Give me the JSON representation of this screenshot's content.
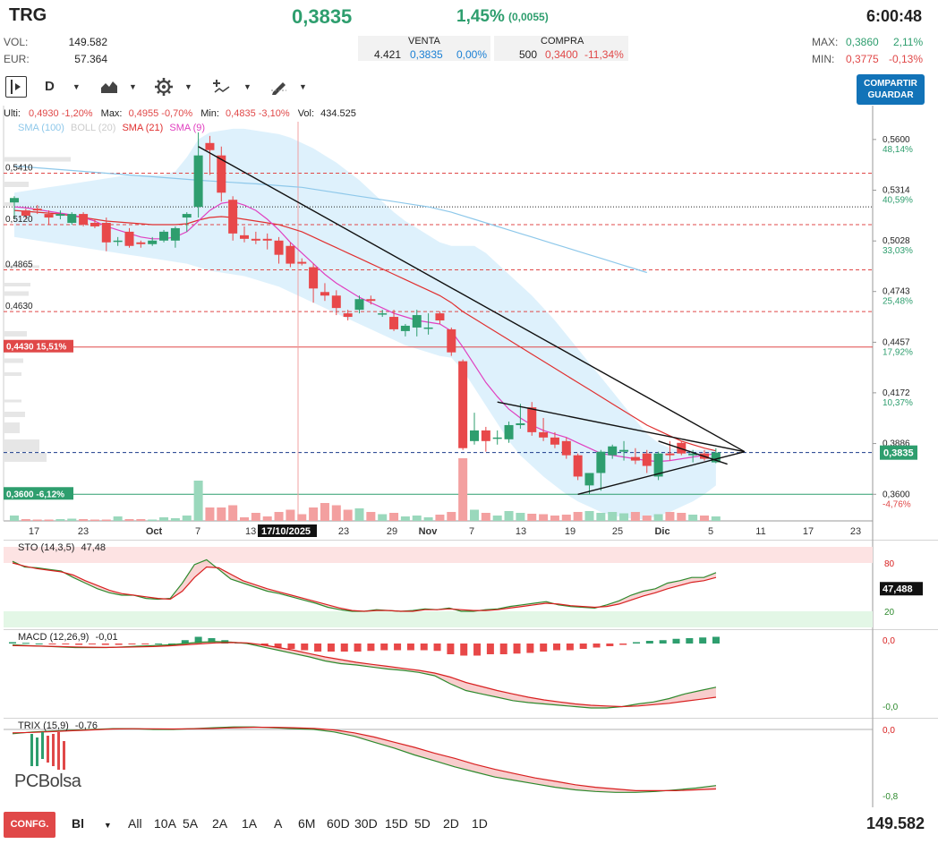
{
  "header": {
    "ticker": "TRG",
    "price": "0,3835",
    "change_pct": "1,45%",
    "change_abs": "(0,0055)",
    "time": "6:00:48"
  },
  "stats_left": {
    "vol_label": "VOL:",
    "vol_value": "149.582",
    "eur_label": "EUR:",
    "eur_value": "57.364"
  },
  "order_book": {
    "sell_label": "VENTA",
    "sell_qty": "4.421",
    "sell_price": "0,3835",
    "sell_pct": "0,00%",
    "buy_label": "COMPRA",
    "buy_qty": "500",
    "buy_price": "0,3400",
    "buy_pct": "-11,34%"
  },
  "stats_right": {
    "max_label": "MAX:",
    "max_value": "0,3860",
    "max_pct": "2,11%",
    "min_label": "MIN:",
    "min_value": "0,3775",
    "min_pct": "-0,13%"
  },
  "toolbar": {
    "period": "D",
    "share_line1": "COMPARTIR",
    "share_line2": "GUARDAR"
  },
  "ohlc": {
    "last_label": "Ulti:",
    "last_value": "0,4930",
    "last_pct": "-1,20%",
    "max_label": "Max:",
    "max_value": "0,4955",
    "max_pct": "-0,70%",
    "min_label": "Min:",
    "min_value": "0,4835",
    "min_pct": "-3,10%",
    "vol_label": "Vol:",
    "vol_value": "434.525"
  },
  "legend": {
    "sma100": "SMA (100)",
    "boll": "BOLL (20)",
    "sma21": "SMA (21)",
    "sma9": "SMA (9)"
  },
  "colors": {
    "up": "#2e9e6e",
    "down": "#e8484a",
    "sma100": "#8ec8ea",
    "sma21": "#e03030",
    "sma9": "#e040c0",
    "boll": "#d8eefc",
    "accent": "#1273b8"
  },
  "price_axis": {
    "levels": [
      {
        "price": "0,5600",
        "pct": "48,14%"
      },
      {
        "price": "0,5314",
        "pct": "40,59%"
      },
      {
        "price": "0,5028",
        "pct": "33,03%"
      },
      {
        "price": "0,4743",
        "pct": "25,48%"
      },
      {
        "price": "0,4457",
        "pct": "17,92%"
      },
      {
        "price": "0,4172",
        "pct": "10,37%"
      },
      {
        "price": "0,3886",
        "pct": "2,81%"
      },
      {
        "price": "0,3600",
        "pct": "-4,76%"
      }
    ],
    "current": "0,3835"
  },
  "left_levels": [
    {
      "value": "0,5410"
    },
    {
      "value": "0,5120"
    },
    {
      "value": "0,4865"
    },
    {
      "value": "0,4630"
    }
  ],
  "level_pills": {
    "upper": "0,4430 15,51%",
    "lower": "0,3600 -6,12%"
  },
  "date_axis": {
    "labels": [
      "17",
      "23",
      "Oct",
      "7",
      "13",
      "23",
      "29",
      "Nov",
      "7",
      "13",
      "19",
      "25",
      "Dic",
      "5",
      "11",
      "17",
      "23"
    ],
    "crosshair": "17/10/2025"
  },
  "sto": {
    "label": "STO (14,3,5)",
    "value": "47,48",
    "tag": "47,488",
    "upper": "80",
    "lower": "20"
  },
  "macd": {
    "label": "MACD (12,26,9)",
    "value": "-0,01",
    "top": "0,0",
    "bottom": "-0,0"
  },
  "trix": {
    "label": "TRIX (15,9)",
    "value": "-0,76",
    "top": "0,0",
    "bottom": "-0,8"
  },
  "logo": "PCBolsa",
  "bottom_bar": {
    "config": "CONFG.",
    "chart_type": "Bl",
    "ranges": [
      "All",
      "10A",
      "5A",
      "2A",
      "1A",
      "A",
      "6M",
      "60D",
      "30D",
      "15D",
      "5D",
      "2D",
      "1D"
    ],
    "volume": "149.582"
  },
  "chart_data": {
    "type": "candlestick",
    "ohlc": [
      {
        "o": 0.5245,
        "h": 0.528,
        "l": 0.515,
        "c": 0.527
      },
      {
        "o": 0.52,
        "h": 0.521,
        "l": 0.5155,
        "c": 0.517
      },
      {
        "o": 0.521,
        "h": 0.523,
        "l": 0.518,
        "c": 0.52
      },
      {
        "o": 0.518,
        "h": 0.52,
        "l": 0.512,
        "c": 0.516
      },
      {
        "o": 0.517,
        "h": 0.52,
        "l": 0.515,
        "c": 0.518
      },
      {
        "o": 0.513,
        "h": 0.519,
        "l": 0.512,
        "c": 0.518
      },
      {
        "o": 0.518,
        "h": 0.519,
        "l": 0.511,
        "c": 0.512
      },
      {
        "o": 0.513,
        "h": 0.515,
        "l": 0.51,
        "c": 0.511
      },
      {
        "o": 0.513,
        "h": 0.516,
        "l": 0.497,
        "c": 0.502
      },
      {
        "o": 0.503,
        "h": 0.505,
        "l": 0.5,
        "c": 0.503
      },
      {
        "o": 0.508,
        "h": 0.51,
        "l": 0.499,
        "c": 0.5
      },
      {
        "o": 0.502,
        "h": 0.503,
        "l": 0.499,
        "c": 0.501
      },
      {
        "o": 0.501,
        "h": 0.505,
        "l": 0.5,
        "c": 0.503
      },
      {
        "o": 0.503,
        "h": 0.509,
        "l": 0.502,
        "c": 0.508
      },
      {
        "o": 0.503,
        "h": 0.511,
        "l": 0.499,
        "c": 0.51
      },
      {
        "o": 0.516,
        "h": 0.519,
        "l": 0.508,
        "c": 0.518
      },
      {
        "o": 0.522,
        "h": 0.564,
        "l": 0.516,
        "c": 0.551
      },
      {
        "o": 0.558,
        "h": 0.562,
        "l": 0.54,
        "c": 0.554
      },
      {
        "o": 0.551,
        "h": 0.556,
        "l": 0.525,
        "c": 0.53
      },
      {
        "o": 0.526,
        "h": 0.528,
        "l": 0.503,
        "c": 0.507
      },
      {
        "o": 0.506,
        "h": 0.511,
        "l": 0.502,
        "c": 0.504
      },
      {
        "o": 0.504,
        "h": 0.508,
        "l": 0.501,
        "c": 0.503
      },
      {
        "o": 0.504,
        "h": 0.507,
        "l": 0.498,
        "c": 0.503
      },
      {
        "o": 0.503,
        "h": 0.505,
        "l": 0.49,
        "c": 0.495
      },
      {
        "o": 0.5,
        "h": 0.502,
        "l": 0.488,
        "c": 0.49
      },
      {
        "o": 0.491,
        "h": 0.493,
        "l": 0.489,
        "c": 0.49
      },
      {
        "o": 0.488,
        "h": 0.49,
        "l": 0.468,
        "c": 0.476
      },
      {
        "o": 0.474,
        "h": 0.479,
        "l": 0.469,
        "c": 0.472
      },
      {
        "o": 0.472,
        "h": 0.475,
        "l": 0.461,
        "c": 0.465
      },
      {
        "o": 0.462,
        "h": 0.464,
        "l": 0.458,
        "c": 0.46
      },
      {
        "o": 0.464,
        "h": 0.472,
        "l": 0.462,
        "c": 0.47
      },
      {
        "o": 0.47,
        "h": 0.472,
        "l": 0.467,
        "c": 0.469
      },
      {
        "o": 0.462,
        "h": 0.464,
        "l": 0.46,
        "c": 0.462
      },
      {
        "o": 0.46,
        "h": 0.464,
        "l": 0.452,
        "c": 0.453
      },
      {
        "o": 0.452,
        "h": 0.456,
        "l": 0.449,
        "c": 0.455
      },
      {
        "o": 0.454,
        "h": 0.464,
        "l": 0.449,
        "c": 0.461
      },
      {
        "o": 0.454,
        "h": 0.462,
        "l": 0.45,
        "c": 0.454
      },
      {
        "o": 0.462,
        "h": 0.463,
        "l": 0.456,
        "c": 0.458
      },
      {
        "o": 0.453,
        "h": 0.454,
        "l": 0.438,
        "c": 0.44
      },
      {
        "o": 0.435,
        "h": 0.436,
        "l": 0.385,
        "c": 0.386
      },
      {
        "o": 0.39,
        "h": 0.406,
        "l": 0.388,
        "c": 0.396
      },
      {
        "o": 0.396,
        "h": 0.398,
        "l": 0.384,
        "c": 0.39
      },
      {
        "o": 0.392,
        "h": 0.396,
        "l": 0.388,
        "c": 0.392
      },
      {
        "o": 0.391,
        "h": 0.401,
        "l": 0.389,
        "c": 0.399
      },
      {
        "o": 0.399,
        "h": 0.411,
        "l": 0.397,
        "c": 0.4
      },
      {
        "o": 0.409,
        "h": 0.412,
        "l": 0.393,
        "c": 0.395
      },
      {
        "o": 0.395,
        "h": 0.403,
        "l": 0.39,
        "c": 0.392
      },
      {
        "o": 0.392,
        "h": 0.395,
        "l": 0.386,
        "c": 0.388
      },
      {
        "o": 0.39,
        "h": 0.392,
        "l": 0.38,
        "c": 0.382
      },
      {
        "o": 0.382,
        "h": 0.383,
        "l": 0.368,
        "c": 0.37
      },
      {
        "o": 0.365,
        "h": 0.372,
        "l": 0.36,
        "c": 0.372
      },
      {
        "o": 0.372,
        "h": 0.385,
        "l": 0.362,
        "c": 0.384
      },
      {
        "o": 0.382,
        "h": 0.388,
        "l": 0.38,
        "c": 0.387
      },
      {
        "o": 0.384,
        "h": 0.39,
        "l": 0.379,
        "c": 0.385
      },
      {
        "o": 0.381,
        "h": 0.386,
        "l": 0.377,
        "c": 0.379
      },
      {
        "o": 0.383,
        "h": 0.385,
        "l": 0.372,
        "c": 0.376
      },
      {
        "o": 0.37,
        "h": 0.384,
        "l": 0.368,
        "c": 0.383
      },
      {
        "o": 0.383,
        "h": 0.39,
        "l": 0.379,
        "c": 0.382
      },
      {
        "o": 0.389,
        "h": 0.39,
        "l": 0.382,
        "c": 0.383
      },
      {
        "o": 0.382,
        "h": 0.385,
        "l": 0.378,
        "c": 0.383
      },
      {
        "o": 0.383,
        "h": 0.385,
        "l": 0.379,
        "c": 0.38
      },
      {
        "o": 0.378,
        "h": 0.386,
        "l": 0.3775,
        "c": 0.3835
      }
    ],
    "volume": [
      12,
      4,
      3,
      3,
      4,
      5,
      4,
      3,
      3,
      10,
      4,
      4,
      3,
      8,
      6,
      12,
      90,
      30,
      30,
      35,
      8,
      18,
      10,
      20,
      25,
      15,
      30,
      40,
      35,
      25,
      28,
      20,
      15,
      18,
      10,
      12,
      8,
      14,
      20,
      140,
      25,
      18,
      12,
      22,
      18,
      16,
      15,
      12,
      14,
      20,
      22,
      18,
      20,
      17,
      20,
      12,
      15,
      20,
      18,
      14,
      12,
      10
    ],
    "ylim": [
      0.345,
      0.57
    ],
    "sma100": [
      0.545,
      0.5445,
      0.544,
      0.5435,
      0.543,
      0.5425,
      0.542,
      0.5415,
      0.541,
      0.5405,
      0.54,
      0.5395,
      0.539,
      0.5385,
      0.538,
      0.5375,
      0.537,
      0.5366,
      0.5362,
      0.5358,
      0.5354,
      0.535,
      0.5345,
      0.534,
      0.5335,
      0.533,
      0.532,
      0.531,
      0.53,
      0.529,
      0.528,
      0.527,
      0.526,
      0.525,
      0.524,
      0.523,
      0.522,
      0.5205,
      0.519,
      0.517,
      0.515,
      0.513,
      0.511,
      0.509,
      0.507,
      0.505,
      0.503,
      0.501,
      0.499,
      0.497,
      0.495,
      0.493,
      0.491,
      0.489,
      0.487,
      0.485
    ],
    "sma21": [
      0.52,
      0.5195,
      0.519,
      0.5185,
      0.518,
      0.517,
      0.516,
      0.515,
      0.514,
      0.5135,
      0.513,
      0.5125,
      0.512,
      0.512,
      0.512,
      0.5125,
      0.5145,
      0.516,
      0.5165,
      0.516,
      0.515,
      0.514,
      0.513,
      0.512,
      0.51,
      0.508,
      0.505,
      0.502,
      0.499,
      0.496,
      0.493,
      0.49,
      0.487,
      0.484,
      0.481,
      0.478,
      0.475,
      0.472,
      0.468,
      0.463,
      0.459,
      0.455,
      0.451,
      0.447,
      0.443,
      0.439,
      0.435,
      0.431,
      0.427,
      0.423,
      0.419,
      0.415,
      0.411,
      0.407,
      0.403,
      0.399,
      0.396,
      0.393,
      0.39,
      0.388,
      0.386,
      0.3845
    ],
    "sma9": [
      0.522,
      0.5215,
      0.5205,
      0.5195,
      0.5185,
      0.5175,
      0.516,
      0.514,
      0.511,
      0.509,
      0.507,
      0.505,
      0.504,
      0.504,
      0.505,
      0.508,
      0.514,
      0.52,
      0.524,
      0.525,
      0.523,
      0.52,
      0.515,
      0.509,
      0.502,
      0.496,
      0.49,
      0.484,
      0.479,
      0.475,
      0.471,
      0.468,
      0.465,
      0.462,
      0.46,
      0.458,
      0.457,
      0.456,
      0.452,
      0.443,
      0.433,
      0.423,
      0.415,
      0.408,
      0.403,
      0.399,
      0.396,
      0.394,
      0.392,
      0.389,
      0.386,
      0.383,
      0.382,
      0.381,
      0.38,
      0.379,
      0.3785,
      0.379,
      0.38,
      0.381,
      0.382,
      0.383
    ],
    "boll_upper": [
      0.53,
      0.531,
      0.532,
      0.533,
      0.534,
      0.535,
      0.536,
      0.537,
      0.538,
      0.539,
      0.54,
      0.54,
      0.54,
      0.54,
      0.542,
      0.55,
      0.56,
      0.564,
      0.565,
      0.566,
      0.566,
      0.565,
      0.564,
      0.563,
      0.561,
      0.558,
      0.555,
      0.551,
      0.547,
      0.542,
      0.537,
      0.531,
      0.525,
      0.519,
      0.514,
      0.51,
      0.506,
      0.502,
      0.5,
      0.5,
      0.5,
      0.496,
      0.49,
      0.484,
      0.478,
      0.472,
      0.465,
      0.458,
      0.45,
      0.442,
      0.434,
      0.426,
      0.418,
      0.41,
      0.402,
      0.394,
      0.389,
      0.386,
      0.385,
      0.385,
      0.385,
      0.385
    ],
    "boll_lower": [
      0.505,
      0.504,
      0.503,
      0.502,
      0.501,
      0.5,
      0.499,
      0.498,
      0.497,
      0.496,
      0.495,
      0.494,
      0.493,
      0.492,
      0.491,
      0.49,
      0.488,
      0.486,
      0.485,
      0.484,
      0.483,
      0.481,
      0.479,
      0.477,
      0.474,
      0.471,
      0.468,
      0.465,
      0.462,
      0.459,
      0.456,
      0.453,
      0.45,
      0.447,
      0.444,
      0.442,
      0.44,
      0.438,
      0.437,
      0.43,
      0.42,
      0.41,
      0.4,
      0.39,
      0.382,
      0.376,
      0.37,
      0.365,
      0.36,
      0.356,
      0.353,
      0.35,
      0.348,
      0.347,
      0.346,
      0.346,
      0.348,
      0.35,
      0.353,
      0.356,
      0.36,
      0.365
    ],
    "trendlines": [
      {
        "from": [
          16,
          0.556
        ],
        "to": [
          63.5,
          0.384
        ]
      },
      {
        "from": [
          42,
          0.412
        ],
        "to": [
          63.5,
          0.384
        ]
      },
      {
        "from": [
          49,
          0.36
        ],
        "to": [
          63.5,
          0.384
        ]
      },
      {
        "from": [
          56,
          0.39
        ],
        "to": [
          62,
          0.377
        ]
      }
    ],
    "hlines": [
      {
        "y": 0.541,
        "style": "dashed",
        "color": "#e04848"
      },
      {
        "y": 0.522,
        "style": "dotted",
        "color": "#222"
      },
      {
        "y": 0.512,
        "style": "dashed",
        "color": "#e04848"
      },
      {
        "y": 0.4865,
        "style": "dashed",
        "color": "#e04848"
      },
      {
        "y": 0.463,
        "style": "dashed",
        "color": "#e04848"
      },
      {
        "y": 0.443,
        "style": "solid",
        "color": "#e04848"
      },
      {
        "y": 0.3835,
        "style": "dashed",
        "color": "#1a3a8a"
      },
      {
        "y": 0.36,
        "style": "solid",
        "color": "#2e9e6e"
      }
    ],
    "sto_k": [
      82,
      75,
      74,
      72,
      70,
      62,
      55,
      48,
      43,
      40,
      40,
      36,
      35,
      36,
      55,
      78,
      84,
      72,
      60,
      55,
      50,
      45,
      42,
      38,
      34,
      30,
      25,
      22,
      20,
      20,
      22,
      21,
      20,
      21,
      23,
      22,
      24,
      20,
      20,
      22,
      23,
      26,
      28,
      30,
      32,
      28,
      26,
      25,
      24,
      28,
      33,
      40,
      45,
      48,
      55,
      58,
      62,
      62,
      68
    ],
    "sto_d": [
      80,
      76,
      73,
      71,
      69,
      65,
      58,
      52,
      46,
      42,
      40,
      38,
      36,
      35,
      45,
      62,
      75,
      74,
      66,
      58,
      53,
      48,
      44,
      40,
      36,
      32,
      28,
      24,
      21,
      20,
      21,
      21,
      20,
      20,
      22,
      22,
      23,
      22,
      21,
      21,
      22,
      24,
      26,
      28,
      30,
      29,
      27,
      26,
      25,
      26,
      29,
      34,
      39,
      43,
      48,
      52,
      56,
      58,
      62
    ],
    "macd_hist": [
      0.2,
      0.1,
      0,
      -0.1,
      -0.1,
      -0.2,
      -0.1,
      -0.2,
      -0.2,
      -0.1,
      -0.1,
      0,
      0,
      0.5,
      1,
      0.8,
      0.5,
      0.2,
      0,
      -0.3,
      -0.6,
      -0.8,
      -1,
      -1.2,
      -1.2,
      -1.2,
      -1.2,
      -1.1,
      -1,
      -1,
      -1,
      -1,
      -1.1,
      -1.6,
      -1.8,
      -1.8,
      -1.6,
      -1.6,
      -1.5,
      -1.4,
      -1.2,
      -1.0,
      -1.0,
      -0.8,
      -0.6,
      -0.4,
      -0.2,
      0.2,
      0.4,
      0.5,
      0.7,
      0.8,
      0.9,
      1
    ],
    "macd_line": [
      -0.2,
      -0.3,
      -0.4,
      -0.5,
      -0.6,
      -0.6,
      -0.6,
      -0.5,
      -0.4,
      -0.3,
      -0.2,
      0,
      0.2,
      0.3,
      0.2,
      0,
      -0.5,
      -1,
      -1.5,
      -2,
      -2.6,
      -3,
      -3.2,
      -3.5,
      -3.8,
      -4,
      -4.3,
      -4.8,
      -6,
      -7,
      -7.5,
      -8,
      -8.5,
      -8.8,
      -9,
      -9.2,
      -9.4,
      -9.6,
      -9.6,
      -9.4,
      -9,
      -8.7,
      -8.2,
      -7.5,
      -7,
      -6.5
    ],
    "macd_signal": [
      -0.3,
      -0.35,
      -0.4,
      -0.45,
      -0.5,
      -0.55,
      -0.58,
      -0.55,
      -0.5,
      -0.45,
      -0.35,
      -0.2,
      -0.05,
      0.1,
      0.15,
      0.1,
      -0.2,
      -0.6,
      -1.0,
      -1.5,
      -2.0,
      -2.4,
      -2.8,
      -3.1,
      -3.4,
      -3.7,
      -4,
      -4.4,
      -5,
      -5.8,
      -6.4,
      -7,
      -7.5,
      -8,
      -8.4,
      -8.7,
      -9,
      -9.2,
      -9.3,
      -9.4,
      -9.3,
      -9.1,
      -8.9,
      -8.6,
      -8.3,
      -8
    ],
    "trix_line": [
      -0.05,
      -0.03,
      -0.02,
      -0.01,
      0,
      0.01,
      0.01,
      0,
      0,
      0.01,
      0.02,
      0.03,
      0.03,
      0.02,
      0.01,
      0,
      -0.03,
      -0.08,
      -0.15,
      -0.22,
      -0.3,
      -0.37,
      -0.44,
      -0.5,
      -0.56,
      -0.6,
      -0.64,
      -0.68,
      -0.71,
      -0.73,
      -0.74,
      -0.74,
      -0.73,
      -0.71,
      -0.69,
      -0.66
    ],
    "trix_signal": [
      -0.04,
      -0.035,
      -0.025,
      -0.015,
      -0.005,
      0.005,
      0.008,
      0.007,
      0.005,
      0.008,
      0.012,
      0.02,
      0.025,
      0.025,
      0.02,
      0.012,
      -0.005,
      -0.04,
      -0.09,
      -0.15,
      -0.21,
      -0.28,
      -0.34,
      -0.41,
      -0.47,
      -0.52,
      -0.57,
      -0.61,
      -0.65,
      -0.68,
      -0.7,
      -0.72,
      -0.72,
      -0.72,
      -0.71,
      -0.7
    ]
  }
}
